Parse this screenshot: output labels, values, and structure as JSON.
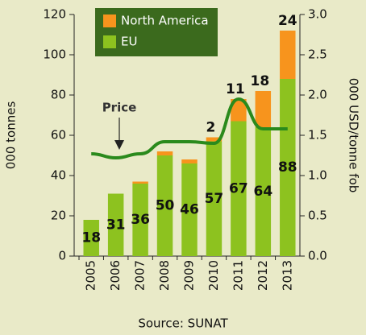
{
  "chart_data": {
    "type": "bar",
    "stacked": true,
    "categories": [
      "2005",
      "2006",
      "2007",
      "2008",
      "2009",
      "2010",
      "2011",
      "2012",
      "2013"
    ],
    "series": [
      {
        "name": "EU",
        "color": "#8dc21f",
        "values": [
          18,
          31,
          36,
          50,
          46,
          57,
          67,
          64,
          88
        ]
      },
      {
        "name": "North America",
        "color": "#f7941d",
        "values": [
          0,
          0,
          1,
          2,
          2,
          2,
          11,
          18,
          24
        ],
        "value_labels": [
          null,
          null,
          null,
          null,
          null,
          "2",
          "11",
          "18",
          "24"
        ]
      },
      {
        "name": "Price",
        "type": "line",
        "axis": "y2",
        "color": "#2a8a1c",
        "values": [
          1.27,
          1.22,
          1.27,
          1.42,
          1.42,
          1.4,
          1.95,
          1.58,
          1.58
        ]
      }
    ],
    "ylabel": "000 tonnes",
    "y2label": "000 USD/tonne fob",
    "ylim": [
      0,
      120
    ],
    "yticks": [
      0,
      20,
      40,
      60,
      80,
      100,
      120
    ],
    "y2lim": [
      0,
      3.0
    ],
    "y2ticks": [
      {
        "value": 0,
        "label": "0.0"
      },
      {
        "value": 0.5,
        "label": "0.5"
      },
      {
        "value": 1,
        "label": "1.0"
      },
      {
        "value": 1.5,
        "label": "1.5"
      },
      {
        "value": 2,
        "label": "2.0"
      },
      {
        "value": 2.5,
        "label": "2.5"
      },
      {
        "value": 3,
        "label": "3.0"
      }
    ],
    "annotation": "Price",
    "source": "Source: SUNAT",
    "legend": "upper left"
  }
}
